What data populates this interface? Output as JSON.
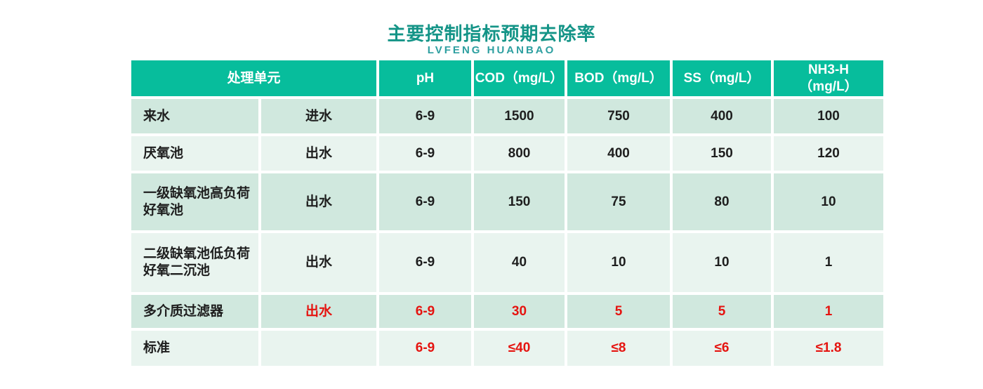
{
  "title": "主要控制指标预期去除率",
  "subtitle": "LVFENG  HUANBAO",
  "colors": {
    "title_teal": "#149487",
    "subtitle_teal": "#2d9fa0",
    "header_green": "#07bd9c",
    "row_odd_bg": "#d0e8de",
    "row_even_bg": "#e9f4ef",
    "highlight_red": "#e51410",
    "text_black": "#1e1e1e"
  },
  "table": {
    "header": {
      "unit_label": "处理单元",
      "columns": [
        "pH",
        "COD（mg/L）",
        "BOD（mg/L）",
        "SS（mg/L）",
        "NH3-H\n（mg/L）"
      ]
    },
    "rows": [
      {
        "name": "来水",
        "flow": "进水",
        "values": [
          "6-9",
          "1500",
          "750",
          "400",
          "100"
        ],
        "red": false
      },
      {
        "name": "厌氧池",
        "flow": "出水",
        "values": [
          "6-9",
          "800",
          "400",
          "150",
          "120"
        ],
        "red": false
      },
      {
        "name": "一级缺氧池高负荷\n好氧池",
        "flow": "出水",
        "values": [
          "6-9",
          "150",
          "75",
          "80",
          "10"
        ],
        "red": false
      },
      {
        "name": "二级缺氧池低负荷\n好氧二沉池",
        "flow": "出水",
        "values": [
          "6-9",
          "40",
          "10",
          "10",
          "1"
        ],
        "red": false
      },
      {
        "name": "多介质过滤器",
        "flow": "出水",
        "values": [
          "6-9",
          "30",
          "5",
          "5",
          "1"
        ],
        "red": true
      },
      {
        "name": "标准",
        "flow": "",
        "values": [
          "6-9",
          "≤40",
          "≤8",
          "≤6",
          "≤1.8"
        ],
        "red": true
      }
    ]
  }
}
